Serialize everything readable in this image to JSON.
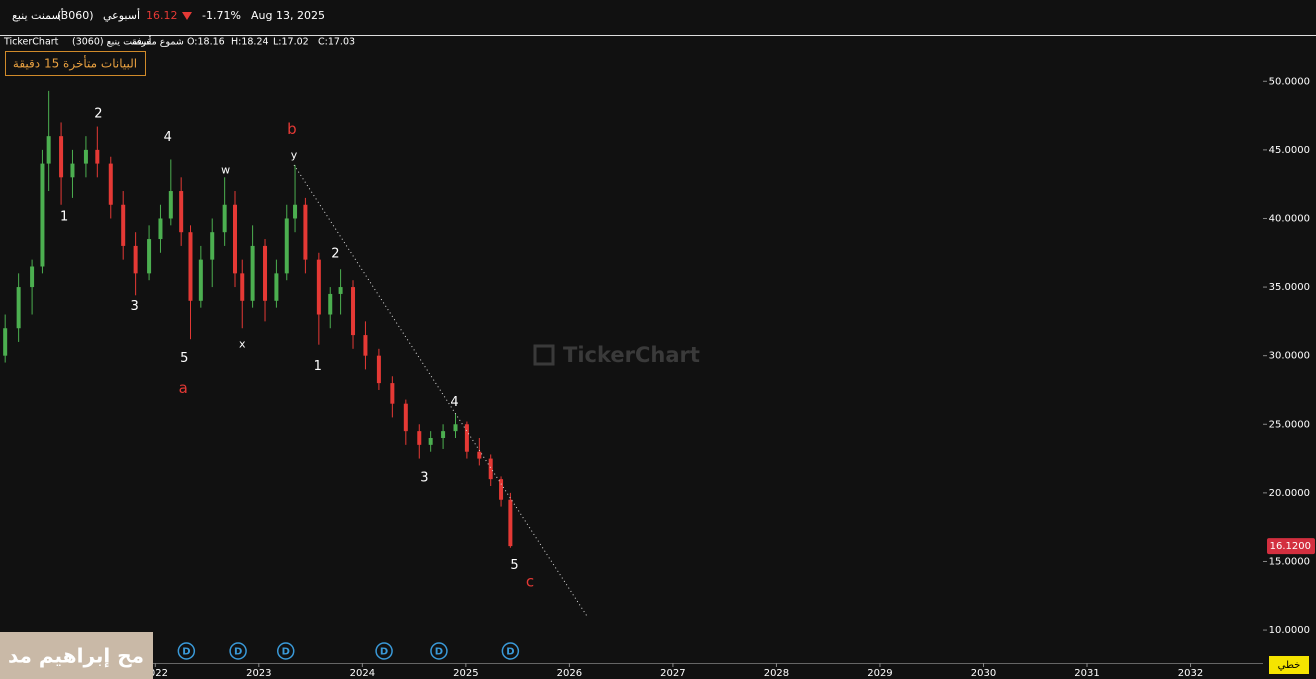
{
  "header": {
    "name": "أسمنت ينبع",
    "code": "(3060)",
    "period": "أسبوعي",
    "price": "16.12",
    "change": "-1.71%",
    "date": "Aug 13, 2025"
  },
  "info": {
    "brand": "TickerChart",
    "symbol": "(3060) أسمنت ينبع",
    "style": "شموع مقرفة",
    "open": "O:18.16",
    "high": "H:18.24",
    "low": "L:17.02",
    "close": "C:17.03"
  },
  "badge": "البيانات متأخرة 15 دقيقة",
  "watermark": "TickerChart",
  "overlay": "مح إبراهيم مد",
  "mode_button": "خطي",
  "chart_data": {
    "type": "candlestick",
    "x": [
      2020.55,
      2020.68,
      2020.81,
      2020.91,
      2020.97,
      2021.09,
      2021.2,
      2021.33,
      2021.44,
      2021.57,
      2021.69,
      2021.81,
      2021.94,
      2022.05,
      2022.15,
      2022.25,
      2022.34,
      2022.44,
      2022.55,
      2022.67,
      2022.77,
      2022.84,
      2022.94,
      2023.06,
      2023.17,
      2023.27,
      2023.35,
      2023.45,
      2023.58,
      2023.69,
      2023.79,
      2023.91,
      2024.03,
      2024.16,
      2024.29,
      2024.42,
      2024.55,
      2024.66,
      2024.78,
      2024.9,
      2025.01,
      2025.13,
      2025.24,
      2025.34,
      2025.43
    ],
    "open": [
      30,
      32,
      35,
      36.5,
      44,
      46,
      43,
      44,
      45,
      44,
      41,
      38,
      36,
      38.5,
      40,
      42,
      39,
      34,
      37,
      39,
      41,
      36,
      34,
      38,
      34,
      36,
      40,
      41,
      37,
      33,
      34.5,
      35,
      31.5,
      30,
      28,
      26.5,
      24.5,
      23.5,
      24,
      24.5,
      25,
      23,
      22.5,
      21,
      19.5
    ],
    "high": [
      33,
      36,
      37,
      45,
      49.3,
      47,
      45,
      46,
      46.7,
      44.5,
      42,
      39,
      39.5,
      41,
      44.3,
      43,
      39.5,
      38,
      40,
      43,
      42,
      37,
      39.5,
      38.5,
      37,
      41,
      43.9,
      41.5,
      37.5,
      35,
      36.3,
      35.5,
      32.5,
      30.5,
      28.5,
      26.8,
      25,
      24.5,
      25,
      25.8,
      25.2,
      24,
      22.8,
      21.2,
      20
    ],
    "low": [
      29.5,
      31,
      33,
      36,
      42,
      41,
      41.5,
      43,
      43,
      40,
      37,
      34.4,
      35.5,
      37.5,
      39.5,
      38,
      31.2,
      33.5,
      35,
      38,
      35,
      32,
      33.5,
      32.5,
      33.5,
      35.5,
      39,
      36,
      30.8,
      32,
      33,
      30.5,
      29,
      27.5,
      25.5,
      23.5,
      22.5,
      23,
      23.2,
      24,
      22.5,
      22,
      20.5,
      19,
      16
    ],
    "close": [
      32,
      35,
      36.5,
      44,
      46,
      43,
      44,
      45,
      44,
      41,
      38,
      36,
      38.5,
      40,
      42,
      39,
      34,
      37,
      39,
      41,
      36,
      34,
      38,
      34,
      36,
      40,
      41,
      37,
      33,
      34.5,
      35,
      31.5,
      30,
      28,
      26.5,
      24.5,
      23.5,
      24,
      24.5,
      25,
      23,
      22.5,
      21,
      19.5,
      16.12
    ],
    "up_color": "#4caf50",
    "down_color": "#e53935",
    "xlim": [
      2020.5,
      2032.7
    ],
    "xticks": [
      2022,
      2023,
      2024,
      2025,
      2026,
      2027,
      2028,
      2029,
      2030,
      2031,
      2032
    ],
    "ylim": [
      7.6,
      53.3
    ],
    "yticks": [
      {
        "value": 10,
        "label": "10.0000"
      },
      {
        "value": 15,
        "label": "15.0000"
      },
      {
        "value": 20,
        "label": "20.0000"
      },
      {
        "value": 25,
        "label": "25.0000"
      },
      {
        "value": 30,
        "label": "30.0000"
      },
      {
        "value": 35,
        "label": "35.0000"
      },
      {
        "value": 40,
        "label": "40.0000"
      },
      {
        "value": 45,
        "label": "45.0000"
      },
      {
        "value": 50,
        "label": "50.0000"
      }
    ],
    "last_price": {
      "value": 16.12,
      "label": "16.1200"
    },
    "trendline": {
      "x": [
        2023.34,
        2026.18
      ],
      "values": [
        43.9,
        10.9
      ]
    },
    "annotations": [
      {
        "text": "2",
        "x": 2021.45,
        "y": 47.6,
        "color": "#ffffff"
      },
      {
        "text": "4",
        "x": 2022.12,
        "y": 45.9,
        "color": "#ffffff"
      },
      {
        "text": "b",
        "x": 2023.32,
        "y": 46.5,
        "color": "#e53935"
      },
      {
        "text": "y",
        "x": 2023.34,
        "y": 44.6,
        "color": "#ffffff"
      },
      {
        "text": "w",
        "x": 2022.68,
        "y": 43.5,
        "color": "#ffffff"
      },
      {
        "text": "1",
        "x": 2021.12,
        "y": 40.1,
        "color": "#ffffff"
      },
      {
        "text": "3",
        "x": 2021.8,
        "y": 33.6,
        "color": "#ffffff"
      },
      {
        "text": "5",
        "x": 2022.28,
        "y": 29.8,
        "color": "#ffffff"
      },
      {
        "text": "a",
        "x": 2022.27,
        "y": 27.6,
        "color": "#e53935"
      },
      {
        "text": "x",
        "x": 2022.84,
        "y": 30.8,
        "color": "#ffffff"
      },
      {
        "text": "2",
        "x": 2023.74,
        "y": 37.4,
        "color": "#ffffff"
      },
      {
        "text": "1",
        "x": 2023.57,
        "y": 29.2,
        "color": "#ffffff"
      },
      {
        "text": "4",
        "x": 2024.89,
        "y": 26.6,
        "color": "#ffffff"
      },
      {
        "text": "3",
        "x": 2024.6,
        "y": 21.1,
        "color": "#ffffff"
      },
      {
        "text": "5",
        "x": 2025.47,
        "y": 14.7,
        "color": "#ffffff"
      },
      {
        "text": "c",
        "x": 2025.62,
        "y": 13.5,
        "color": "#e53935"
      }
    ],
    "events": {
      "label": "D",
      "x": [
        2022.3,
        2022.8,
        2023.26,
        2024.21,
        2024.74,
        2025.43
      ]
    }
  }
}
